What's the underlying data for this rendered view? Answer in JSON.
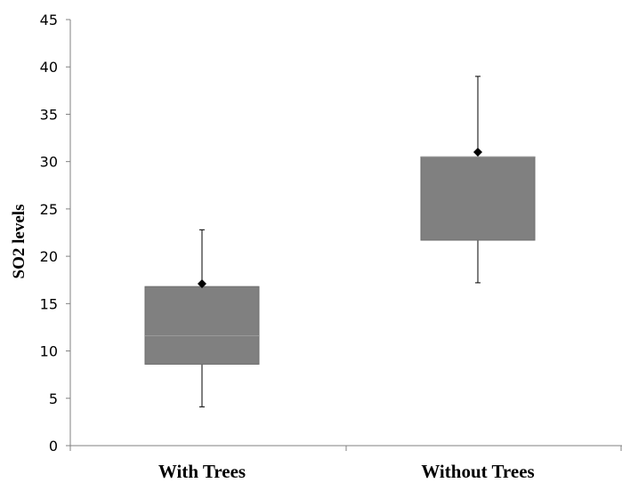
{
  "chart_data": {
    "type": "boxplot",
    "title": "",
    "xlabel": "",
    "ylabel": "SO2 levels",
    "ylim": [
      0,
      45
    ],
    "yticks": [
      0,
      5,
      10,
      15,
      20,
      25,
      30,
      35,
      40,
      45
    ],
    "categories": [
      "With Trees",
      "Without Trees"
    ],
    "boxes": [
      {
        "category": "With Trees",
        "min": 4.1,
        "q1": 8.6,
        "median": 11.6,
        "q3": 16.8,
        "max": 22.8,
        "mean": 17.1
      },
      {
        "category": "Without Trees",
        "min": 17.2,
        "q1": 21.7,
        "median": 30.5,
        "q3": 30.5,
        "max": 39.0,
        "mean": 31.0
      }
    ],
    "box_color": "#808080",
    "median_color": "#9a9a9a",
    "whisker_color": "#000000",
    "grid": false,
    "legend": "none"
  }
}
